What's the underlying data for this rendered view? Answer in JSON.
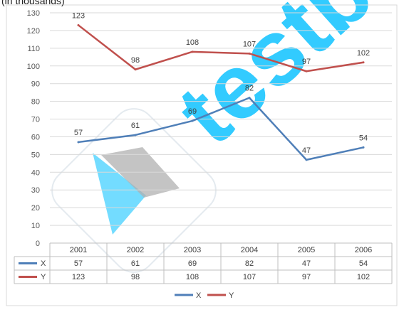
{
  "header_fragment": "(in thousands)",
  "chart_data": {
    "type": "line",
    "categories": [
      "2001",
      "2002",
      "2003",
      "2004",
      "2005",
      "2006"
    ],
    "series": [
      {
        "name": "X",
        "values": [
          57,
          61,
          69,
          82,
          47,
          54
        ],
        "color": "#4f7fb8"
      },
      {
        "name": "Y",
        "values": [
          123,
          98,
          108,
          107,
          97,
          102
        ],
        "color": "#c0504d"
      }
    ],
    "ylim": [
      0,
      130
    ],
    "ytick_step": 10,
    "grid": true,
    "data_table": true,
    "legend": "bottom"
  },
  "watermark": {
    "text": "testbook",
    "color": "#00bfff"
  }
}
